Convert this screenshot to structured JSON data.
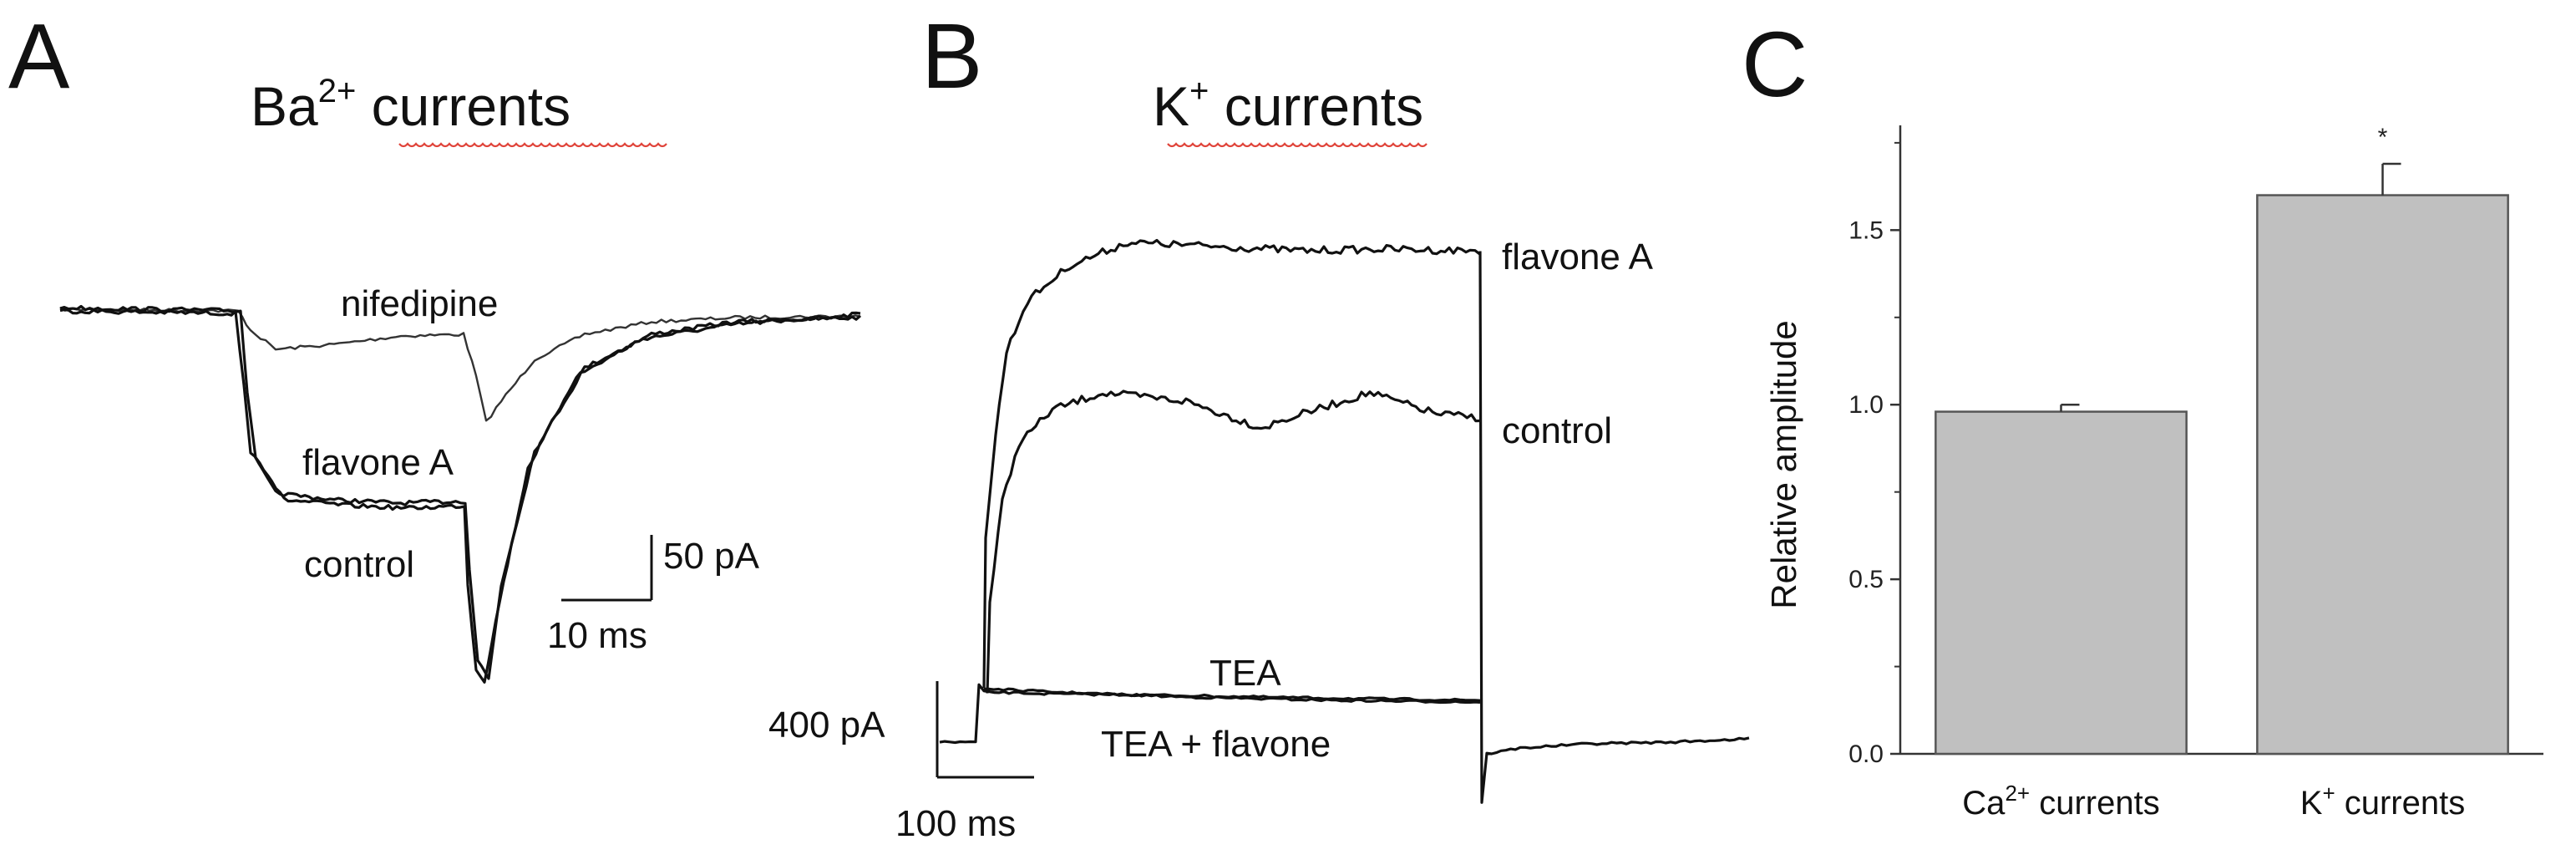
{
  "panel_a": {
    "letter": "A",
    "title_prefix": "Ba",
    "title_sup": "2+",
    "title_suffix": " currents",
    "traces": [
      {
        "label": "nifedipine"
      },
      {
        "label": "flavone A"
      },
      {
        "label": "control"
      }
    ],
    "scale_bar": {
      "y_label": "50 pA",
      "x_label": "10 ms"
    }
  },
  "panel_b": {
    "letter": "B",
    "title_prefix": "K",
    "title_sup": "+",
    "title_suffix": " currents",
    "traces": [
      {
        "label": "flavone A"
      },
      {
        "label": "control"
      },
      {
        "label": "TEA"
      },
      {
        "label": "TEA + flavone"
      }
    ],
    "scale_bar": {
      "y_label": "400 pA",
      "x_label": "100 ms"
    }
  },
  "panel_c": {
    "letter": "C",
    "significance_marker": "*",
    "colors": {
      "bar_fill": "#c0c0c0",
      "bar_stroke": "#555555",
      "axis": "#333333"
    }
  },
  "chart_data": {
    "type": "bar",
    "categories": [
      "Ca2+ currents",
      "K+ currents"
    ],
    "category_display": [
      {
        "base": "Ca",
        "sup": "2+",
        "suffix": " currents"
      },
      {
        "base": "K",
        "sup": "+",
        "suffix": " currents"
      }
    ],
    "values": [
      0.98,
      1.6
    ],
    "errors": [
      0.02,
      0.09
    ],
    "ylabel": "Relative amplitude",
    "xlabel": "",
    "ylim": [
      0,
      1.8
    ],
    "yticks": [
      "0.0",
      "0.5",
      "1.0",
      "1.5"
    ],
    "grid": false,
    "legend": "none"
  }
}
